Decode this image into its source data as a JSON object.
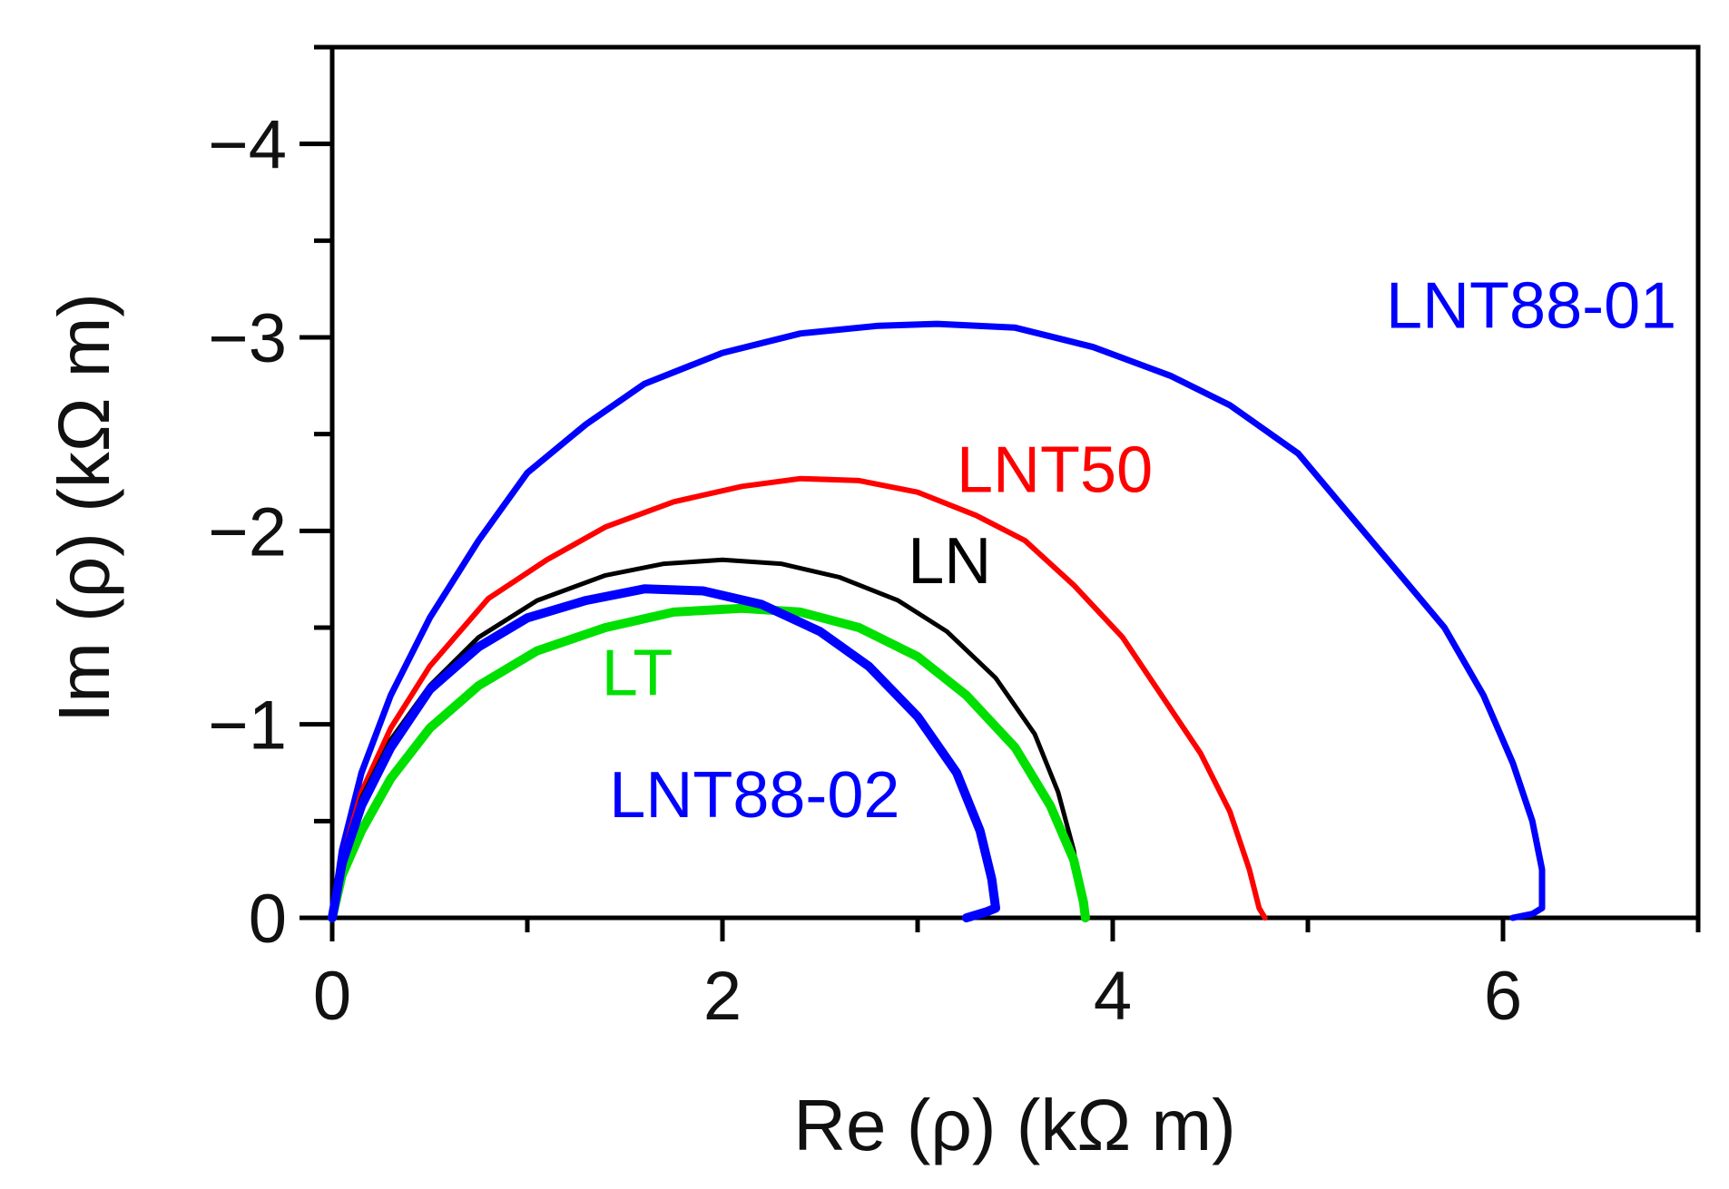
{
  "chart_data": {
    "type": "line",
    "title": "",
    "xlabel": "Re (ρ) (kΩ m)",
    "ylabel": "Im (ρ) (kΩ m)",
    "xlim": [
      0,
      7
    ],
    "ylim": [
      0,
      -4.5
    ],
    "x_ticks": [
      0,
      2,
      4,
      6
    ],
    "x_tick_labels": [
      "0",
      "2",
      "4",
      "6"
    ],
    "y_ticks": [
      0,
      -1,
      -2,
      -3,
      -4
    ],
    "y_tick_labels": [
      "0",
      "−1",
      "−2",
      "−3",
      "−4"
    ],
    "x_minor_ticks": [
      1,
      3,
      5,
      7
    ],
    "y_minor_ticks": [
      -0.5,
      -1.5,
      -2.5,
      -3.5,
      -4.5
    ],
    "grid": false,
    "series": [
      {
        "name": "LNT88-01",
        "color": "#0000ff",
        "label_position": [
          5.4,
          -3.05
        ],
        "points": [
          [
            0.0,
            0.0
          ],
          [
            0.05,
            -0.35
          ],
          [
            0.15,
            -0.75
          ],
          [
            0.3,
            -1.15
          ],
          [
            0.5,
            -1.55
          ],
          [
            0.75,
            -1.95
          ],
          [
            1.0,
            -2.3
          ],
          [
            1.3,
            -2.55
          ],
          [
            1.6,
            -2.76
          ],
          [
            2.0,
            -2.92
          ],
          [
            2.4,
            -3.02
          ],
          [
            2.8,
            -3.06
          ],
          [
            3.1,
            -3.07
          ],
          [
            3.5,
            -3.05
          ],
          [
            3.9,
            -2.95
          ],
          [
            4.3,
            -2.8
          ],
          [
            4.6,
            -2.65
          ],
          [
            4.95,
            -2.4
          ],
          [
            5.2,
            -2.1
          ],
          [
            5.45,
            -1.8
          ],
          [
            5.7,
            -1.5
          ],
          [
            5.9,
            -1.15
          ],
          [
            6.05,
            -0.8
          ],
          [
            6.15,
            -0.5
          ],
          [
            6.2,
            -0.25
          ],
          [
            6.2,
            -0.05
          ],
          [
            6.15,
            -0.02
          ],
          [
            6.05,
            0.0
          ]
        ]
      },
      {
        "name": "LNT50",
        "color": "#ff0000",
        "label_position": [
          3.2,
          -2.2
        ],
        "points": [
          [
            0.0,
            0.0
          ],
          [
            0.05,
            -0.3
          ],
          [
            0.15,
            -0.65
          ],
          [
            0.3,
            -0.98
          ],
          [
            0.5,
            -1.3
          ],
          [
            0.8,
            -1.65
          ],
          [
            1.1,
            -1.85
          ],
          [
            1.4,
            -2.02
          ],
          [
            1.75,
            -2.15
          ],
          [
            2.1,
            -2.23
          ],
          [
            2.4,
            -2.27
          ],
          [
            2.7,
            -2.26
          ],
          [
            3.0,
            -2.2
          ],
          [
            3.3,
            -2.08
          ],
          [
            3.55,
            -1.95
          ],
          [
            3.8,
            -1.72
          ],
          [
            4.05,
            -1.45
          ],
          [
            4.25,
            -1.15
          ],
          [
            4.45,
            -0.85
          ],
          [
            4.6,
            -0.55
          ],
          [
            4.7,
            -0.25
          ],
          [
            4.75,
            -0.05
          ],
          [
            4.78,
            0.0
          ]
        ]
      },
      {
        "name": "LN",
        "color": "#000000",
        "label_position": [
          2.95,
          -1.73
        ],
        "points": [
          [
            0.0,
            0.0
          ],
          [
            0.05,
            -0.3
          ],
          [
            0.15,
            -0.62
          ],
          [
            0.3,
            -0.92
          ],
          [
            0.5,
            -1.2
          ],
          [
            0.75,
            -1.45
          ],
          [
            1.05,
            -1.64
          ],
          [
            1.4,
            -1.77
          ],
          [
            1.7,
            -1.83
          ],
          [
            2.0,
            -1.85
          ],
          [
            2.3,
            -1.83
          ],
          [
            2.6,
            -1.76
          ],
          [
            2.9,
            -1.64
          ],
          [
            3.15,
            -1.48
          ],
          [
            3.4,
            -1.24
          ],
          [
            3.6,
            -0.95
          ],
          [
            3.72,
            -0.65
          ],
          [
            3.8,
            -0.35
          ],
          [
            3.84,
            -0.1
          ],
          [
            3.85,
            0.0
          ]
        ]
      },
      {
        "name": "LT",
        "color": "#00e000",
        "label_position": [
          1.38,
          -1.15
        ],
        "points": [
          [
            0.0,
            0.0
          ],
          [
            0.05,
            -0.22
          ],
          [
            0.15,
            -0.45
          ],
          [
            0.3,
            -0.72
          ],
          [
            0.5,
            -0.98
          ],
          [
            0.75,
            -1.2
          ],
          [
            1.05,
            -1.38
          ],
          [
            1.4,
            -1.5
          ],
          [
            1.75,
            -1.58
          ],
          [
            2.1,
            -1.6
          ],
          [
            2.4,
            -1.58
          ],
          [
            2.7,
            -1.5
          ],
          [
            3.0,
            -1.35
          ],
          [
            3.25,
            -1.15
          ],
          [
            3.5,
            -0.88
          ],
          [
            3.68,
            -0.58
          ],
          [
            3.8,
            -0.3
          ],
          [
            3.85,
            -0.08
          ],
          [
            3.86,
            0.0
          ]
        ]
      },
      {
        "name": "LNT88-02",
        "color": "#0000ff",
        "label_position": [
          1.42,
          -0.52
        ],
        "points": [
          [
            0.0,
            0.0
          ],
          [
            0.05,
            -0.28
          ],
          [
            0.15,
            -0.58
          ],
          [
            0.3,
            -0.88
          ],
          [
            0.5,
            -1.18
          ],
          [
            0.75,
            -1.4
          ],
          [
            1.0,
            -1.55
          ],
          [
            1.3,
            -1.64
          ],
          [
            1.6,
            -1.7
          ],
          [
            1.9,
            -1.69
          ],
          [
            2.2,
            -1.62
          ],
          [
            2.5,
            -1.48
          ],
          [
            2.75,
            -1.3
          ],
          [
            3.0,
            -1.04
          ],
          [
            3.2,
            -0.75
          ],
          [
            3.32,
            -0.45
          ],
          [
            3.38,
            -0.2
          ],
          [
            3.4,
            -0.05
          ],
          [
            3.35,
            -0.03
          ],
          [
            3.25,
            0.0
          ]
        ]
      }
    ]
  }
}
